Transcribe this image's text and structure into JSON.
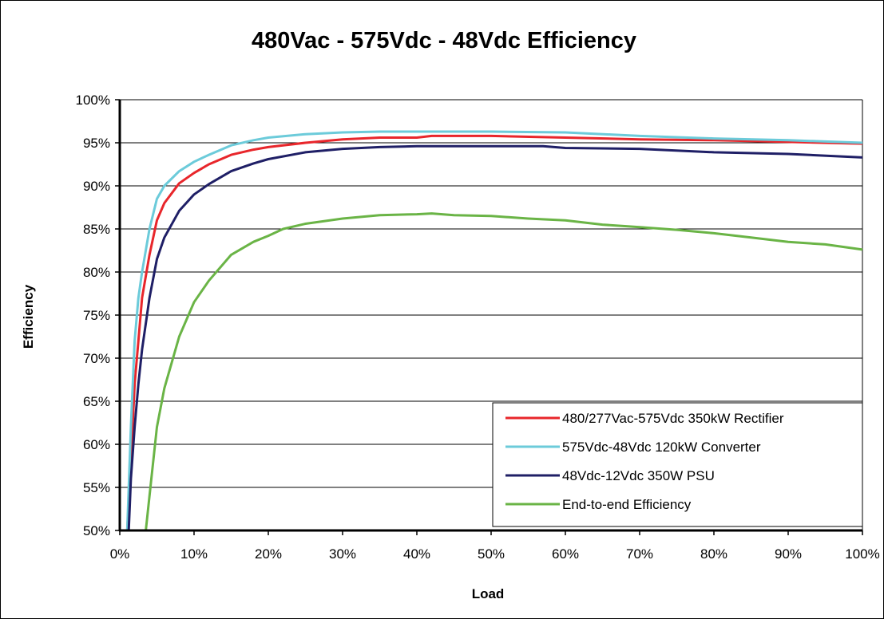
{
  "chart_data": {
    "type": "line",
    "title": "480Vac - 575Vdc - 48Vdc Efficiency",
    "xlabel": "Load",
    "ylabel": "Efficiency",
    "xlim": [
      0,
      100
    ],
    "ylim": [
      50,
      100
    ],
    "x_ticks": [
      "0%",
      "10%",
      "20%",
      "30%",
      "40%",
      "50%",
      "60%",
      "70%",
      "80%",
      "90%",
      "100%"
    ],
    "y_ticks": [
      "50%",
      "55%",
      "60%",
      "65%",
      "70%",
      "75%",
      "80%",
      "85%",
      "90%",
      "95%",
      "100%"
    ],
    "grid": true,
    "legend_position": "bottom-right",
    "series": [
      {
        "name": "480/277Vac-575Vdc 350kW Rectifier",
        "color": "#e8262b",
        "x": [
          1,
          1.5,
          2,
          2.5,
          3,
          4,
          5,
          6,
          8,
          10,
          12,
          15,
          18,
          20,
          25,
          30,
          35,
          40,
          42,
          50,
          60,
          70,
          80,
          90,
          100
        ],
        "y": [
          50,
          58,
          67,
          72,
          77,
          82,
          86,
          88,
          90.3,
          91.5,
          92.5,
          93.6,
          94.2,
          94.5,
          95,
          95.4,
          95.6,
          95.6,
          95.8,
          95.8,
          95.6,
          95.4,
          95.3,
          95.1,
          94.9
        ]
      },
      {
        "name": "575Vdc-48Vdc 120kW Converter",
        "color": "#6ccbda",
        "x": [
          1,
          1.5,
          2,
          2.5,
          3,
          4,
          5,
          6,
          8,
          10,
          12,
          15,
          18,
          20,
          25,
          30,
          35,
          40,
          50,
          60,
          70,
          80,
          90,
          100
        ],
        "y": [
          50,
          62,
          72,
          77,
          80,
          85,
          88.5,
          90,
          91.7,
          92.8,
          93.6,
          94.7,
          95.3,
          95.6,
          96,
          96.2,
          96.3,
          96.3,
          96.3,
          96.2,
          95.8,
          95.5,
          95.3,
          95
        ]
      },
      {
        "name": "48Vdc-12Vdc 350W PSU",
        "color": "#1f1f66",
        "x": [
          1.2,
          1.5,
          2,
          2.5,
          3,
          4,
          5,
          6,
          8,
          10,
          12,
          15,
          18,
          20,
          25,
          30,
          35,
          40,
          50,
          57,
          60,
          70,
          80,
          90,
          100
        ],
        "y": [
          50,
          56,
          62,
          67,
          71,
          77,
          81.5,
          84,
          87.1,
          89,
          90.2,
          91.7,
          92.6,
          93.1,
          93.9,
          94.3,
          94.5,
          94.6,
          94.6,
          94.6,
          94.4,
          94.3,
          93.9,
          93.7,
          93.3
        ]
      },
      {
        "name": "End-to-end Efficiency",
        "color": "#6ab446",
        "x": [
          3.5,
          4,
          5,
          6,
          7,
          8,
          10,
          12,
          15,
          18,
          20,
          22,
          25,
          30,
          35,
          40,
          42,
          45,
          50,
          55,
          60,
          65,
          70,
          75,
          80,
          85,
          90,
          95,
          100
        ],
        "y": [
          50,
          54,
          62,
          66.5,
          69.5,
          72.5,
          76.5,
          79,
          82,
          83.5,
          84.2,
          85,
          85.6,
          86.2,
          86.6,
          86.7,
          86.8,
          86.6,
          86.5,
          86.2,
          86,
          85.5,
          85.2,
          84.9,
          84.5,
          84,
          83.5,
          83.2,
          82.6
        ]
      }
    ]
  }
}
